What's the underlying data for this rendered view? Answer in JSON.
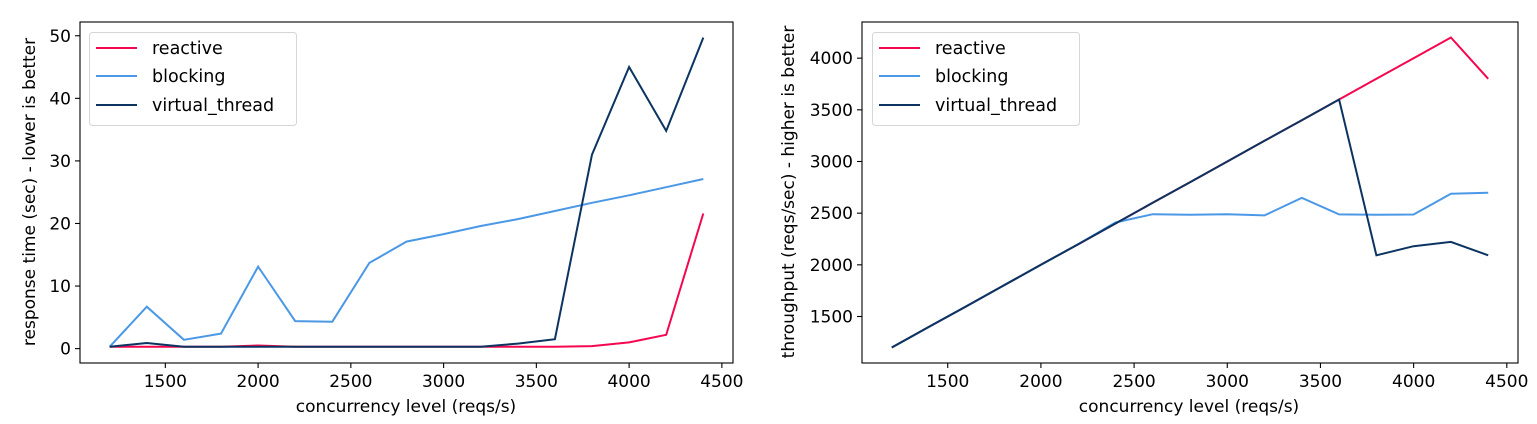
{
  "colors": {
    "reactive": "#f5074f",
    "blocking": "#4a98e6",
    "virtual_thread": "#0b3461"
  },
  "chart_data": [
    {
      "type": "line",
      "title": "",
      "xlabel": "concurrency level (reqs/s)",
      "ylabel": "response time (sec) - lower is better",
      "x": [
        1200,
        1400,
        1600,
        1800,
        2000,
        2200,
        2400,
        2600,
        2800,
        3000,
        3200,
        3400,
        3600,
        3800,
        4000,
        4200,
        4400
      ],
      "xticks": [
        1500,
        2000,
        2500,
        3000,
        3500,
        4000,
        4500
      ],
      "yticks": [
        0,
        10,
        20,
        30,
        40,
        50
      ],
      "xlim": [
        1040,
        4560
      ],
      "ylim": [
        -2.3,
        52.2
      ],
      "grid": false,
      "legend_position": "upper left",
      "series": [
        {
          "name": "reactive",
          "values": [
            0.3,
            0.3,
            0.3,
            0.3,
            0.5,
            0.3,
            0.3,
            0.3,
            0.3,
            0.3,
            0.3,
            0.3,
            0.3,
            0.4,
            1.0,
            2.2,
            21.6
          ]
        },
        {
          "name": "blocking",
          "values": [
            0.3,
            6.7,
            1.4,
            2.4,
            13.1,
            4.4,
            4.3,
            13.7,
            17.1,
            18.3,
            19.6,
            20.7,
            22.0,
            23.3,
            24.5,
            25.8,
            27.1
          ]
        },
        {
          "name": "virtual_thread",
          "values": [
            0.3,
            0.9,
            0.3,
            0.3,
            0.3,
            0.3,
            0.3,
            0.3,
            0.3,
            0.3,
            0.3,
            0.8,
            1.5,
            31.0,
            45.0,
            34.8,
            49.7
          ]
        }
      ]
    },
    {
      "type": "line",
      "title": "",
      "xlabel": "concurrency level (reqs/s)",
      "ylabel": "throughput (reqs/sec) - higher is better",
      "x": [
        1200,
        1400,
        1600,
        1800,
        2000,
        2200,
        2400,
        2600,
        2800,
        3000,
        3200,
        3400,
        3600,
        3800,
        4000,
        4200,
        4400
      ],
      "xticks": [
        1500,
        2000,
        2500,
        3000,
        3500,
        4000,
        4500
      ],
      "yticks": [
        1500,
        2000,
        2500,
        3000,
        3500,
        4000
      ],
      "xlim": [
        1040,
        4560
      ],
      "ylim": [
        1050,
        4350
      ],
      "grid": false,
      "legend_position": "upper left",
      "series": [
        {
          "name": "reactive",
          "values": [
            1200,
            1400,
            1600,
            1800,
            2000,
            2200,
            2400,
            2600,
            2800,
            3000,
            3200,
            3400,
            3600,
            3800,
            4000,
            4200,
            3800
          ]
        },
        {
          "name": "blocking",
          "values": [
            1200,
            1400,
            1600,
            1800,
            2000,
            2200,
            2410,
            2490,
            2485,
            2490,
            2478,
            2649,
            2488,
            2485,
            2487,
            2687,
            2697
          ]
        },
        {
          "name": "virtual_thread",
          "values": [
            1200,
            1400,
            1600,
            1800,
            2000,
            2200,
            2400,
            2600,
            2800,
            3000,
            3200,
            3400,
            3600,
            2092,
            2180,
            2222,
            2092
          ]
        }
      ]
    }
  ],
  "legend": {
    "items": [
      "reactive",
      "blocking",
      "virtual_thread"
    ]
  }
}
